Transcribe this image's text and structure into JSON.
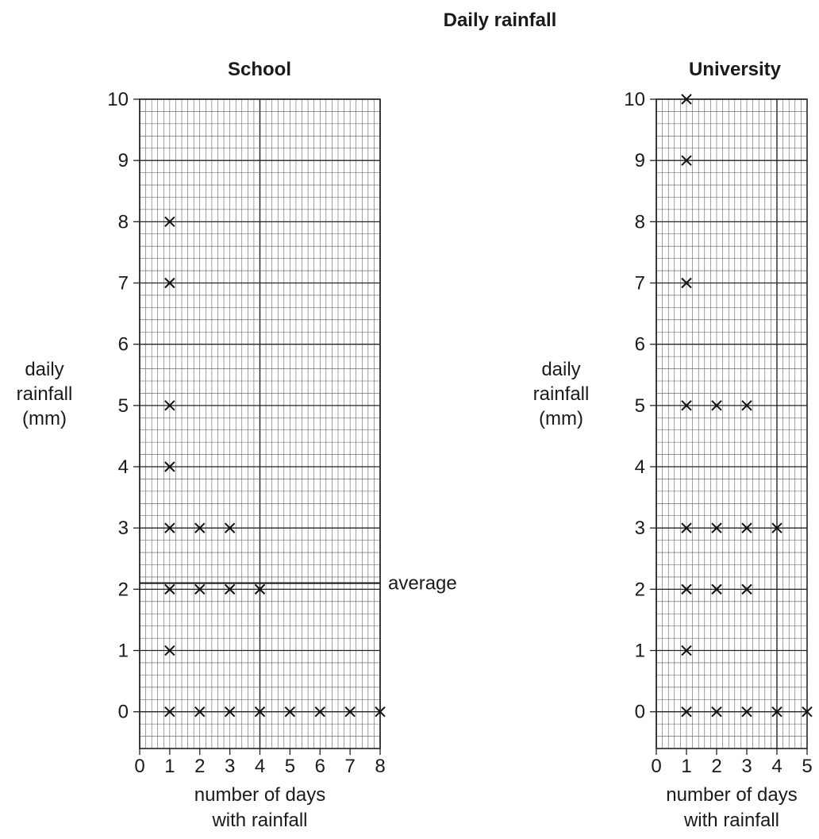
{
  "figure_title": "Daily rainfall",
  "chart_data": [
    {
      "type": "scatter",
      "title": "School",
      "ylabel_lines": [
        "daily",
        "rainfall",
        "(mm)"
      ],
      "xlabel_lines": [
        "number of days",
        "with rainfall"
      ],
      "xlim": [
        0,
        8
      ],
      "ylim": [
        -0.6,
        10
      ],
      "x_ticks": [
        0,
        1,
        2,
        3,
        4,
        5,
        6,
        7,
        8
      ],
      "y_ticks": [
        0,
        1,
        2,
        3,
        4,
        5,
        6,
        7,
        8,
        9,
        10
      ],
      "grid": true,
      "marker": "x",
      "points": [
        {
          "x": 1,
          "y": 8
        },
        {
          "x": 1,
          "y": 7
        },
        {
          "x": 1,
          "y": 5
        },
        {
          "x": 1,
          "y": 4
        },
        {
          "x": 1,
          "y": 3
        },
        {
          "x": 2,
          "y": 3
        },
        {
          "x": 3,
          "y": 3
        },
        {
          "x": 1,
          "y": 2
        },
        {
          "x": 2,
          "y": 2
        },
        {
          "x": 3,
          "y": 2
        },
        {
          "x": 4,
          "y": 2
        },
        {
          "x": 1,
          "y": 1
        },
        {
          "x": 1,
          "y": 0
        },
        {
          "x": 2,
          "y": 0
        },
        {
          "x": 3,
          "y": 0
        },
        {
          "x": 4,
          "y": 0
        },
        {
          "x": 5,
          "y": 0
        },
        {
          "x": 6,
          "y": 0
        },
        {
          "x": 7,
          "y": 0
        },
        {
          "x": 8,
          "y": 0
        }
      ],
      "reference_line": {
        "label": "average",
        "y": 2.1
      }
    },
    {
      "type": "scatter",
      "title": "University",
      "ylabel_lines": [
        "daily",
        "rainfall",
        "(mm)"
      ],
      "xlabel_lines": [
        "number of days",
        "with rainfall"
      ],
      "xlim": [
        0,
        5
      ],
      "ylim": [
        -0.6,
        10
      ],
      "x_ticks": [
        0,
        1,
        2,
        3,
        4,
        5
      ],
      "y_ticks": [
        0,
        1,
        2,
        3,
        4,
        5,
        6,
        7,
        8,
        9,
        10
      ],
      "grid": true,
      "marker": "x",
      "points": [
        {
          "x": 1,
          "y": 10
        },
        {
          "x": 1,
          "y": 9
        },
        {
          "x": 1,
          "y": 7
        },
        {
          "x": 1,
          "y": 5
        },
        {
          "x": 2,
          "y": 5
        },
        {
          "x": 3,
          "y": 5
        },
        {
          "x": 1,
          "y": 3
        },
        {
          "x": 2,
          "y": 3
        },
        {
          "x": 3,
          "y": 3
        },
        {
          "x": 4,
          "y": 3
        },
        {
          "x": 1,
          "y": 2
        },
        {
          "x": 2,
          "y": 2
        },
        {
          "x": 3,
          "y": 2
        },
        {
          "x": 1,
          "y": 1
        },
        {
          "x": 1,
          "y": 0
        },
        {
          "x": 2,
          "y": 0
        },
        {
          "x": 3,
          "y": 0
        },
        {
          "x": 4,
          "y": 0
        },
        {
          "x": 5,
          "y": 0
        }
      ]
    }
  ]
}
